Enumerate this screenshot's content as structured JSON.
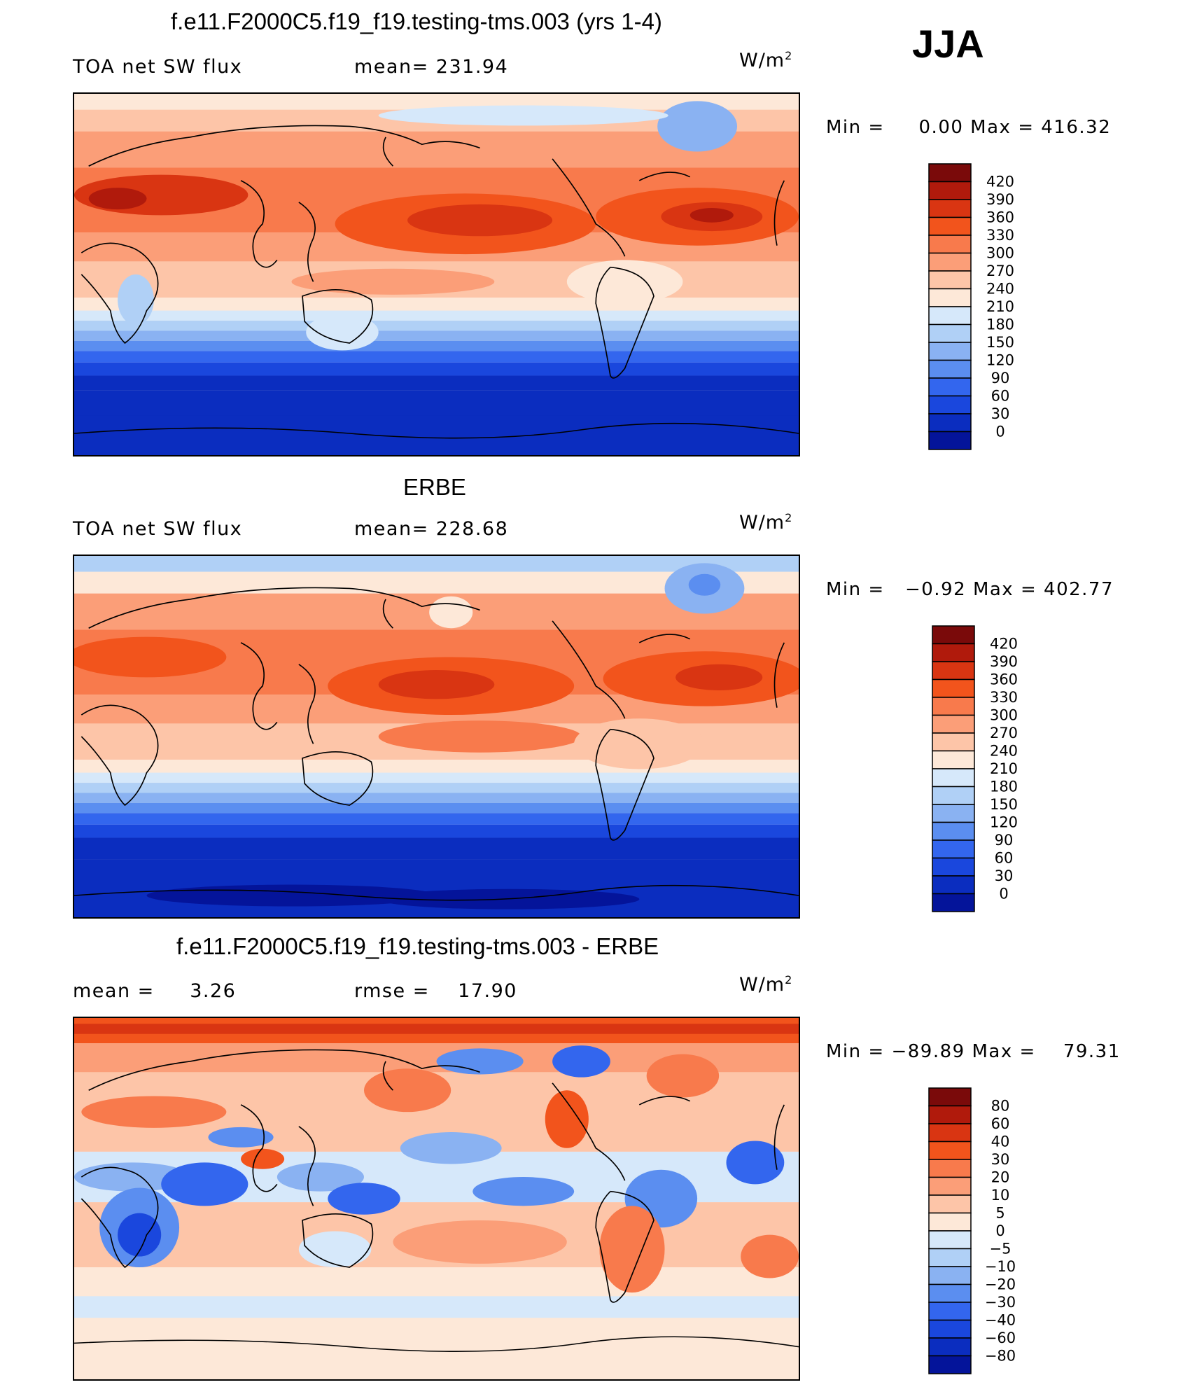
{
  "season": "JJA",
  "panels": [
    {
      "id": "model",
      "title": "f.e11.F2000C5.f19_f19.testing-tms.003 (yrs 1-4)",
      "left_label": "TOA net SW flux",
      "stat_label": "mean=",
      "stat_value": "231.94",
      "units": "W/m",
      "units_sup": "2",
      "min_label": "Min",
      "min_value": "0.00",
      "max_label": "Max",
      "max_value": "416.32"
    },
    {
      "id": "obs",
      "title": "ERBE",
      "left_label": "TOA net SW flux",
      "stat_label": "mean=",
      "stat_value": "228.68",
      "units": "W/m",
      "units_sup": "2",
      "min_label": "Min",
      "min_value": "−0.92",
      "max_label": "Max",
      "max_value": "402.77"
    },
    {
      "id": "diff",
      "title": "f.e11.F2000C5.f19_f19.testing-tms.003 - ERBE",
      "mean_label": "mean",
      "mean_value": "3.26",
      "rmse_label": "rmse",
      "rmse_value": "17.90",
      "units": "W/m",
      "units_sup": "2",
      "min_label": "Min",
      "min_value": "−89.89",
      "max_label": "Max",
      "max_value": "79.31"
    }
  ],
  "colorbars": {
    "flux": {
      "labels": [
        "420",
        "390",
        "360",
        "330",
        "300",
        "270",
        "240",
        "210",
        "180",
        "150",
        "120",
        "90",
        "60",
        "30",
        "0"
      ],
      "colors": [
        "#7a0a0a",
        "#b01a0c",
        "#d93512",
        "#f2541c",
        "#f87a4c",
        "#fb9e78",
        "#fdc5a8",
        "#fde8d8",
        "#d6e8fa",
        "#b0d0f6",
        "#8ab2f2",
        "#5b8ef0",
        "#3366ee",
        "#1a47dd",
        "#0b2dbf",
        "#04149a"
      ]
    },
    "diff": {
      "labels": [
        "80",
        "60",
        "40",
        "30",
        "20",
        "10",
        "5",
        "0",
        "−5",
        "−10",
        "−20",
        "−30",
        "−40",
        "−60",
        "−80"
      ],
      "colors": [
        "#7a0a0a",
        "#b01a0c",
        "#d93512",
        "#f2541c",
        "#f87a4c",
        "#fb9e78",
        "#fdc5a8",
        "#fde8d8",
        "#d6e8fa",
        "#b0d0f6",
        "#8ab2f2",
        "#5b8ef0",
        "#3366ee",
        "#1a47dd",
        "#0b2dbf",
        "#04149a"
      ]
    }
  }
}
